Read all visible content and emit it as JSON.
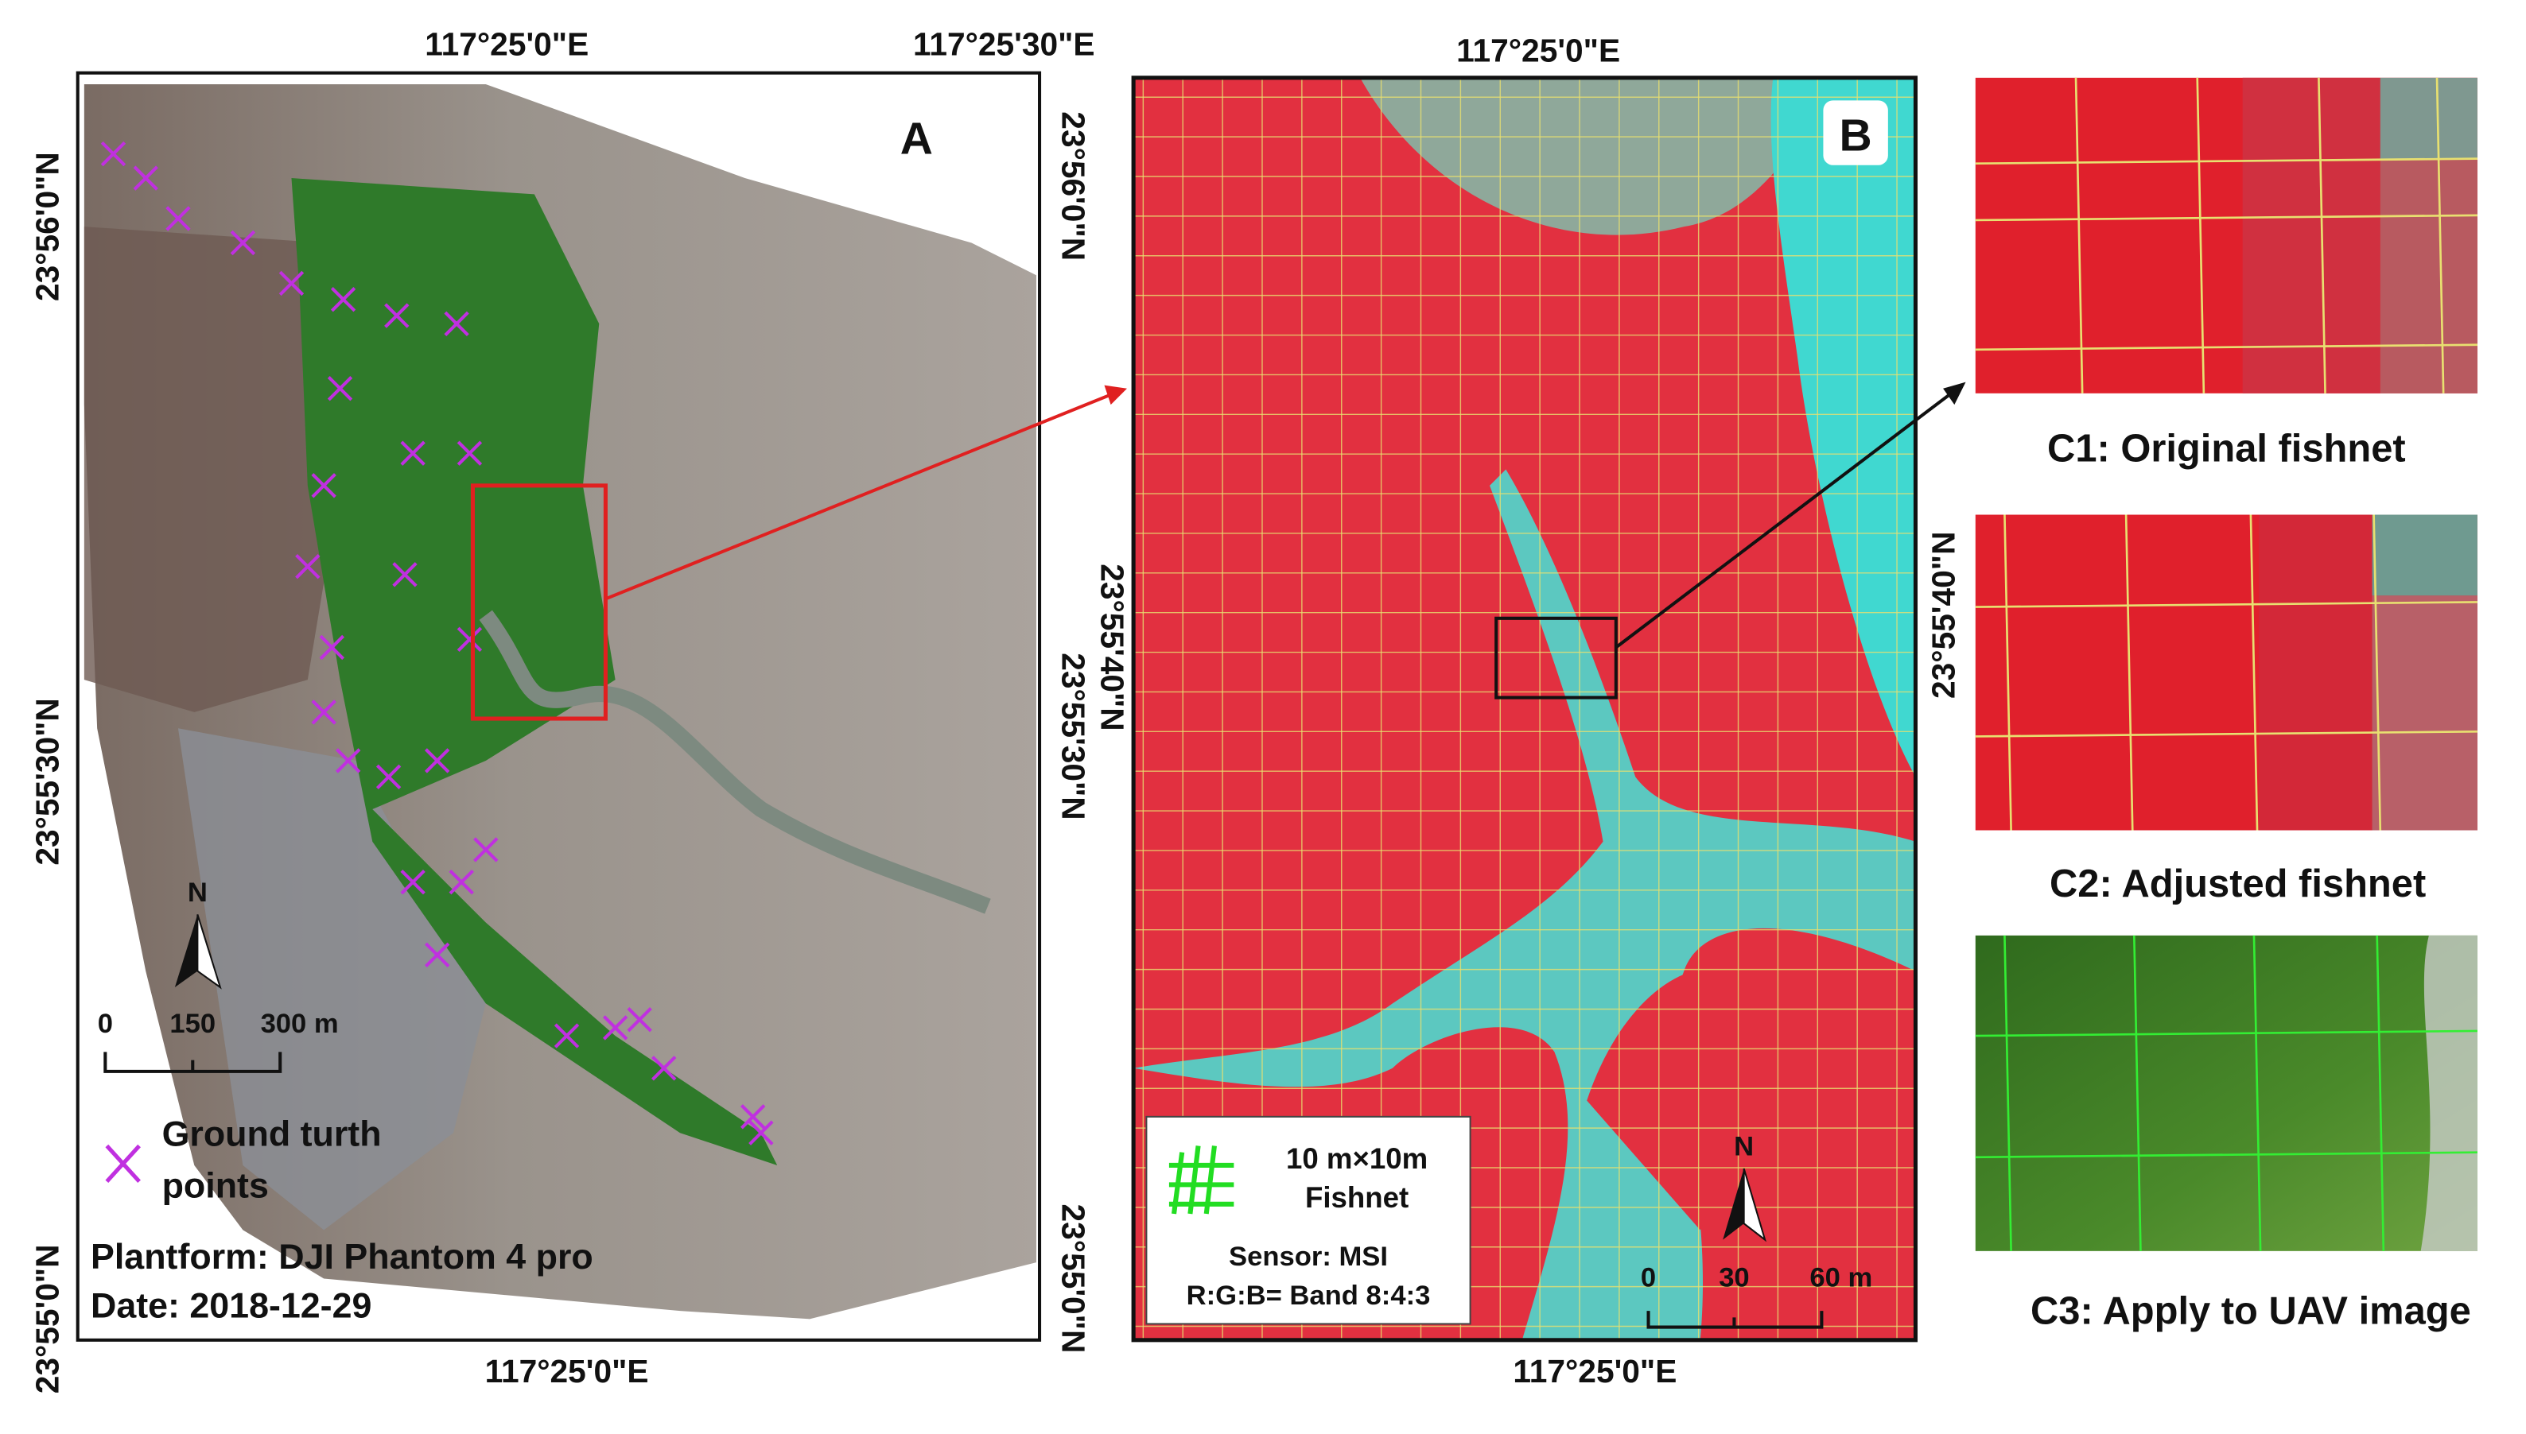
{
  "panel_a": {
    "label": "A",
    "top_x_labels": [
      "117°25'0\"E",
      "117°25'30\"E"
    ],
    "bottom_x_labels": [
      "117°25'0\"E"
    ],
    "left_y_labels": [
      "23°56'0\"N",
      "23°55'30\"N",
      "23°55'0\"N"
    ],
    "right_y_labels": [
      "23°56'0\"N",
      "23°55'30\"N",
      "23°55'0\"N"
    ],
    "north": "N",
    "scale_labels": [
      "0",
      "150",
      "300 m"
    ],
    "legend_lines": [
      "Ground turth",
      "points"
    ],
    "platform": "Plantform:  DJI Phantom 4 pro",
    "date": "Date: 2018-12-29"
  },
  "panel_b": {
    "label": "B",
    "top_x_label": "117°25'0\"E",
    "bottom_x_label": "117°25'0\"E",
    "left_y_label": "23°55'40\"N",
    "right_y_label": "23°55'40\"N",
    "north": "N",
    "scale_labels": [
      "0",
      "30",
      "60 m"
    ],
    "legend_lines": [
      "10 m×10m",
      "Fishnet"
    ],
    "sensor": "Sensor: MSI",
    "bands": "R:G:B= Band 8:4:3"
  },
  "panels_c": [
    {
      "caption": "C1: Original fishnet"
    },
    {
      "caption": "C2: Adjusted fishnet"
    },
    {
      "caption": "C3: Apply to UAV image"
    }
  ]
}
